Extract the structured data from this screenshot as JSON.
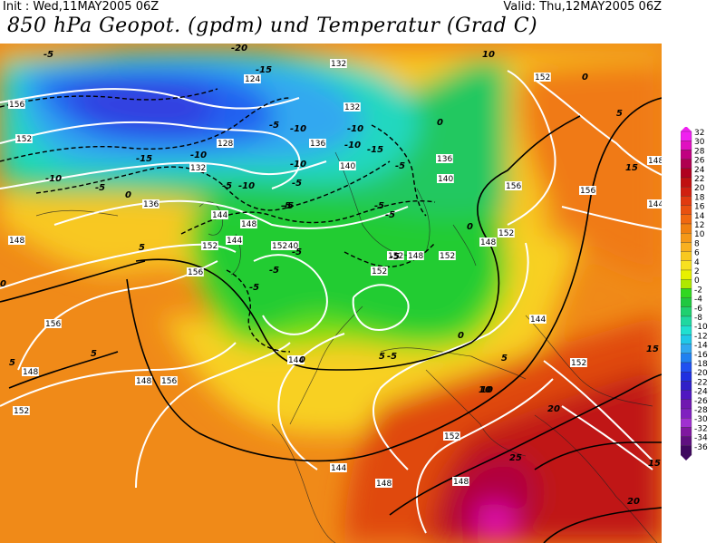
{
  "header": {
    "init": "Init : Wed,11MAY2005 06Z",
    "valid": "Valid: Thu,12MAY2005 06Z",
    "title": "850 hPa Geopot. (gpdm) und Temperatur (Grad C)"
  },
  "legend": {
    "labels": [
      "32",
      "30",
      "28",
      "26",
      "24",
      "22",
      "20",
      "18",
      "16",
      "14",
      "12",
      "10",
      "8",
      "6",
      "4",
      "2",
      "0",
      "-2",
      "-4",
      "-6",
      "-8",
      "-10",
      "-12",
      "-14",
      "-16",
      "-18",
      "-20",
      "-22",
      "-24",
      "-26",
      "-28",
      "-30",
      "-32",
      "-34",
      "-36"
    ],
    "colors": [
      "#f020f0",
      "#e010c0",
      "#c00080",
      "#b00050",
      "#b00020",
      "#c01010",
      "#d02010",
      "#e03a10",
      "#e85010",
      "#f06810",
      "#f08010",
      "#f59818",
      "#f8b020",
      "#f8c820",
      "#f8e020",
      "#e8f000",
      "#b0e800",
      "#30d820",
      "#20c840",
      "#20d070",
      "#20d8a0",
      "#20e0d0",
      "#20c8e8",
      "#30a8f0",
      "#2080f0",
      "#2050f0",
      "#2030e0",
      "#3020c8",
      "#5018c0",
      "#7018b0",
      "#8020c0",
      "#a030d0",
      "#8018a0",
      "#601080",
      "#400860"
    ]
  },
  "map": {
    "geopotential_labels": [
      {
        "text": "156"
      },
      {
        "text": "152"
      },
      {
        "text": "124"
      },
      {
        "text": "132"
      },
      {
        "text": "132"
      },
      {
        "text": "128"
      },
      {
        "text": "136"
      },
      {
        "text": "132"
      },
      {
        "text": "140"
      },
      {
        "text": "140"
      },
      {
        "text": "136"
      },
      {
        "text": "144"
      },
      {
        "text": "148"
      },
      {
        "text": "152"
      },
      {
        "text": "156"
      },
      {
        "text": "144"
      },
      {
        "text": "152"
      },
      {
        "text": "136"
      },
      {
        "text": "140"
      },
      {
        "text": "144"
      },
      {
        "text": "148"
      },
      {
        "text": "152"
      },
      {
        "text": "156"
      },
      {
        "text": "152"
      },
      {
        "text": "148"
      },
      {
        "text": "144"
      },
      {
        "text": "148"
      },
      {
        "text": "156"
      },
      {
        "text": "152"
      },
      {
        "text": "156"
      },
      {
        "text": "144"
      },
      {
        "text": "148"
      },
      {
        "text": "152"
      },
      {
        "text": "148"
      },
      {
        "text": "152"
      },
      {
        "text": "144"
      },
      {
        "text": "148"
      },
      {
        "text": "152"
      },
      {
        "text": "148"
      },
      {
        "text": "148"
      },
      {
        "text": "152"
      },
      {
        "text": "156"
      },
      {
        "text": "152"
      },
      {
        "text": "144"
      }
    ],
    "temperature_labels": [
      {
        "text": "-5"
      },
      {
        "text": "-20"
      },
      {
        "text": "-15"
      },
      {
        "text": "-15"
      },
      {
        "text": "-10"
      },
      {
        "text": "-10"
      },
      {
        "text": "-5"
      },
      {
        "text": "-10"
      },
      {
        "text": "-15"
      },
      {
        "text": "-10"
      },
      {
        "text": "-10"
      },
      {
        "text": "-5"
      },
      {
        "text": "-10"
      },
      {
        "text": "-5"
      },
      {
        "text": "0"
      },
      {
        "text": "-5"
      },
      {
        "text": "-5"
      },
      {
        "text": "-5"
      },
      {
        "text": "-5"
      },
      {
        "text": "-5"
      },
      {
        "text": "-5"
      },
      {
        "text": "0"
      },
      {
        "text": "5"
      },
      {
        "text": "0"
      },
      {
        "text": "0"
      },
      {
        "text": "5"
      },
      {
        "text": "10"
      },
      {
        "text": "0"
      },
      {
        "text": "-5"
      },
      {
        "text": "-5"
      },
      {
        "text": "-5"
      },
      {
        "text": "-5"
      },
      {
        "text": "0"
      },
      {
        "text": "5"
      },
      {
        "text": "5"
      },
      {
        "text": "10"
      },
      {
        "text": "15"
      },
      {
        "text": "20"
      },
      {
        "text": "25"
      },
      {
        "text": "15"
      },
      {
        "text": "20"
      },
      {
        "text": "5"
      },
      {
        "text": "10"
      },
      {
        "text": "15"
      },
      {
        "text": "-10"
      },
      {
        "text": "-5"
      },
      {
        "text": "0"
      },
      {
        "text": "5"
      }
    ]
  }
}
